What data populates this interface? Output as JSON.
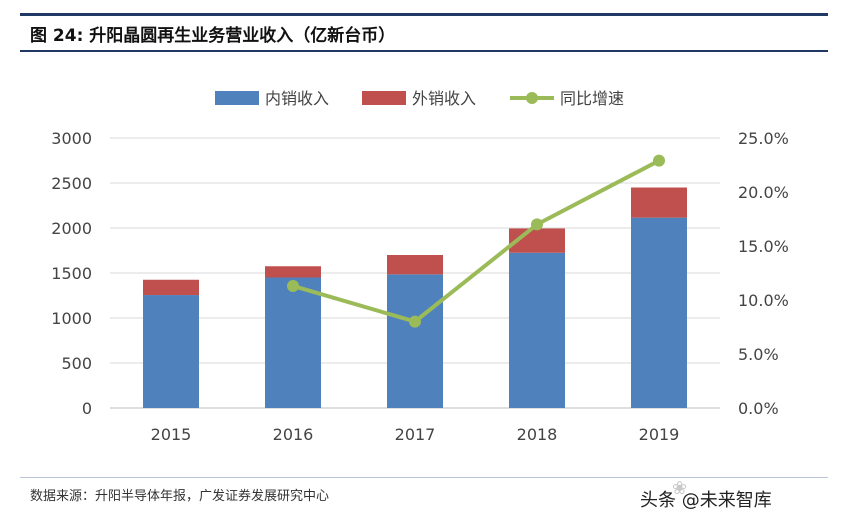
{
  "header": {
    "title": "图 24: 升阳晶圆再生业务营业收入（亿新台币）"
  },
  "chart_data": {
    "type": "bar",
    "stacked": true,
    "categories": [
      "2015",
      "2016",
      "2017",
      "2018",
      "2019"
    ],
    "series": [
      {
        "name": "内销收入",
        "kind": "bar",
        "axis": "left",
        "color": "#4f81bd",
        "values": [
          1255,
          1450,
          1485,
          1725,
          2115
        ]
      },
      {
        "name": "外销收入",
        "kind": "bar",
        "axis": "left",
        "color": "#c0504d",
        "values": [
          170,
          125,
          215,
          270,
          335
        ]
      },
      {
        "name": "同比增速",
        "kind": "line",
        "axis": "right",
        "color": "#9bbb59",
        "values": [
          null,
          0.113,
          0.08,
          0.17,
          0.229
        ]
      }
    ],
    "left_axis": {
      "ylim": [
        0,
        3000
      ],
      "ticks": [
        "0",
        "500",
        "1000",
        "1500",
        "2000",
        "2500",
        "3000"
      ]
    },
    "right_axis": {
      "ylim": [
        0,
        0.25
      ],
      "ticks": [
        "0.0%",
        "5.0%",
        "10.0%",
        "15.0%",
        "20.0%",
        "25.0%"
      ]
    },
    "grid": true,
    "legend_position": "top-center"
  },
  "footer": {
    "source": "数据来源：升阳半导体年报，广发证券发展研究中心"
  },
  "watermark": {
    "text": "头条 @未来智库",
    "logo_text": "未来智库"
  }
}
